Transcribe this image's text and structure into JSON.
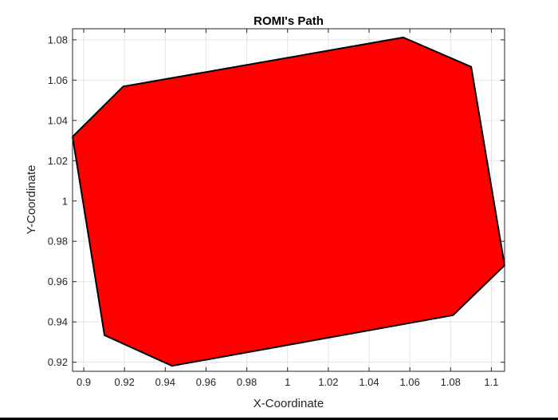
{
  "chart_data": {
    "type": "area",
    "title": "ROMI's Path",
    "xlabel": "X-Coordinate",
    "ylabel": "Y-Coordinate",
    "xlim": [
      0.8945,
      1.1065
    ],
    "ylim": [
      0.9155,
      1.0855
    ],
    "xticks": [
      0.9,
      0.92,
      0.94,
      0.96,
      0.98,
      1,
      1.02,
      1.04,
      1.06,
      1.08,
      1.1
    ],
    "xtick_labels": [
      "0.9",
      "0.92",
      "0.94",
      "0.96",
      "0.98",
      "1",
      "1.02",
      "1.04",
      "1.06",
      "1.08",
      "1.1"
    ],
    "yticks": [
      0.92,
      0.94,
      0.96,
      0.98,
      1,
      1.02,
      1.04,
      1.06,
      1.08
    ],
    "ytick_labels": [
      "0.92",
      "0.94",
      "0.96",
      "0.98",
      "1",
      "1.02",
      "1.04",
      "1.06",
      "1.08"
    ],
    "grid": true,
    "fill_color": "#ff0000",
    "edge_color": "#000000",
    "x": [
      0.9193,
      1.0568,
      1.0901,
      1.1065,
      1.0812,
      0.9433,
      0.9102,
      0.8945
    ],
    "y": [
      1.0568,
      1.0812,
      1.0666,
      0.9681,
      0.9433,
      0.9182,
      0.9334,
      1.0319
    ]
  }
}
